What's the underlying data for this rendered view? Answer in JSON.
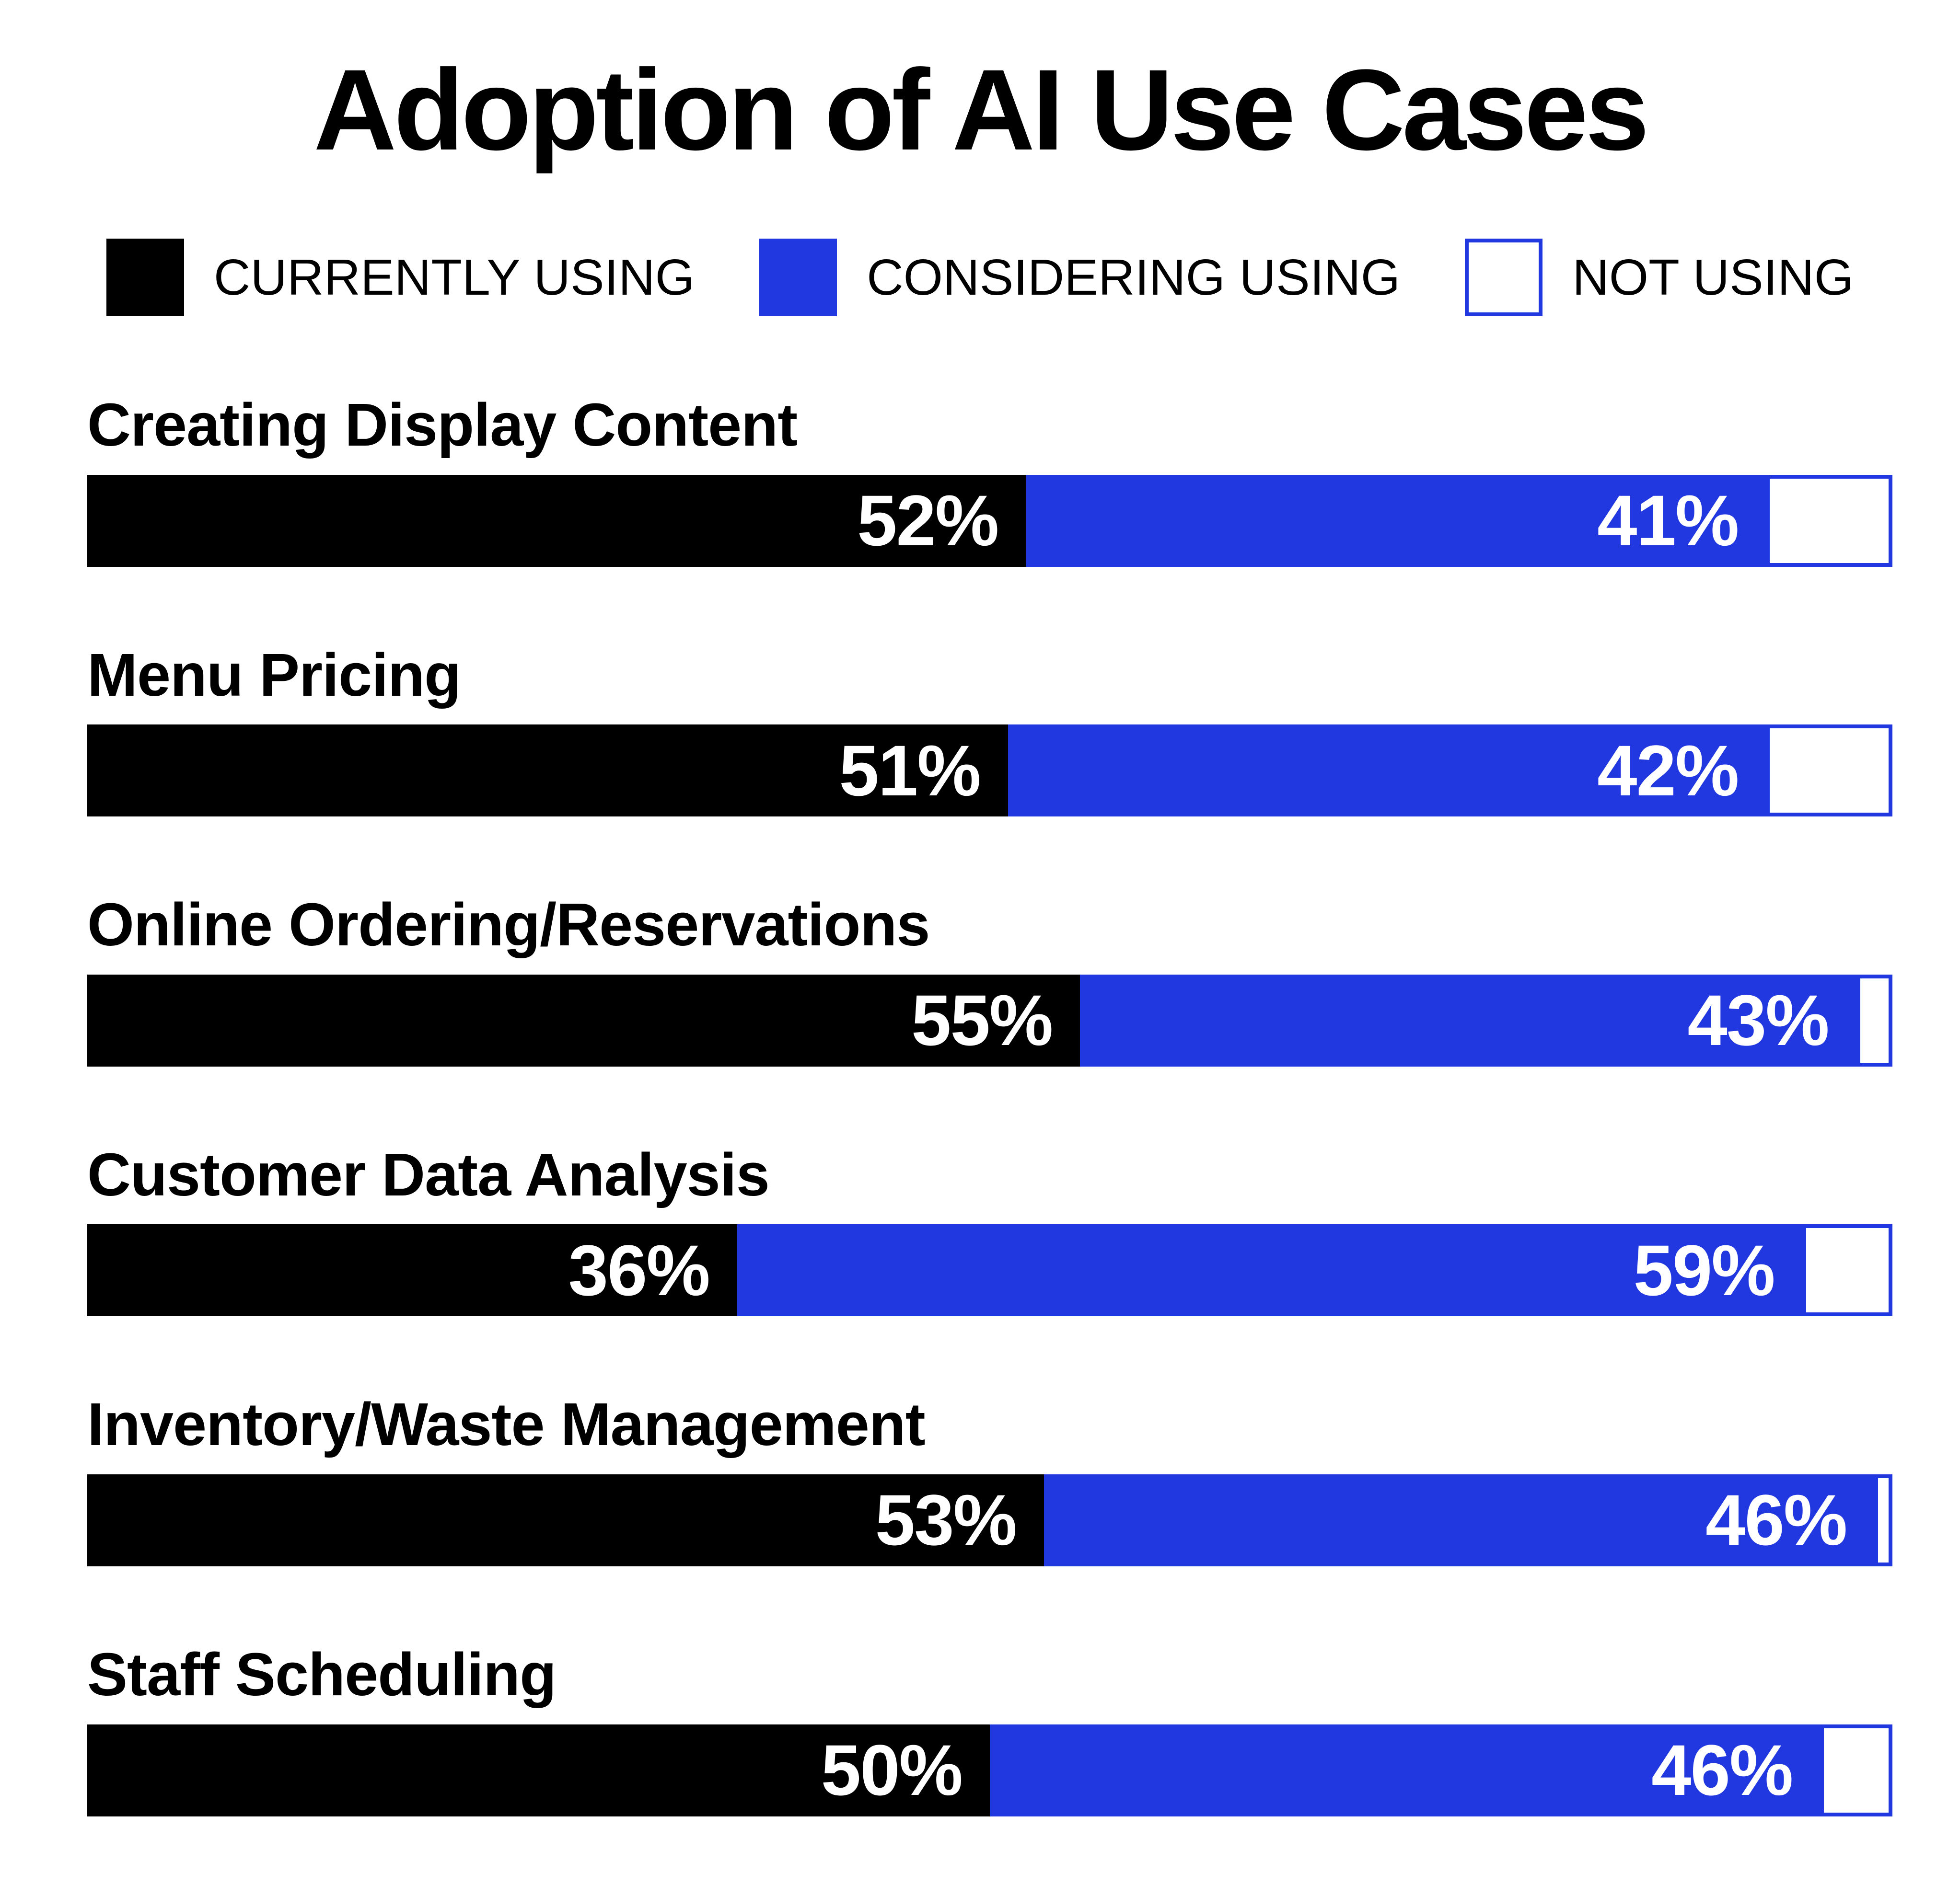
{
  "title": "Adoption of AI Use Cases",
  "colors": {
    "background": "#FFFFFF",
    "currently": "#000000",
    "considering": "#2137E0",
    "not_using_fill": "#FFFFFF",
    "not_using_border": "#2137E0",
    "label_text": "#000000",
    "value_text": "#FFFFFF"
  },
  "legend": {
    "items": [
      {
        "label": "CURRENTLY USING",
        "swatch_color": "#000000",
        "swatch_style": "solid"
      },
      {
        "label": "CONSIDERING USING",
        "swatch_color": "#2137E0",
        "swatch_style": "solid"
      },
      {
        "label": "NOT USING",
        "swatch_color": "#FFFFFF",
        "swatch_border_color": "#2137E0",
        "swatch_style": "outlined"
      }
    ]
  },
  "rows": [
    {
      "label": "Creating Display Content",
      "currently_pct": 52,
      "considering_pct": 41,
      "not_pct": 7,
      "currently_label": "52%",
      "considering_label": "41%"
    },
    {
      "label": "Menu Pricing",
      "currently_pct": 51,
      "considering_pct": 42,
      "not_pct": 7,
      "currently_label": "51%",
      "considering_label": "42%"
    },
    {
      "label": "Online Ordering/Reservations",
      "currently_pct": 55,
      "considering_pct": 43,
      "not_pct": 2,
      "currently_label": "55%",
      "considering_label": "43%"
    },
    {
      "label": "Customer Data Analysis",
      "currently_pct": 36,
      "considering_pct": 59,
      "not_pct": 5,
      "currently_label": "36%",
      "considering_label": "59%"
    },
    {
      "label": "Inventory/Waste Management",
      "currently_pct": 53,
      "considering_pct": 46,
      "not_pct": 1,
      "currently_label": "53%",
      "considering_label": "46%"
    },
    {
      "label": "Staff Scheduling",
      "currently_pct": 50,
      "considering_pct": 46,
      "not_pct": 4,
      "currently_label": "50%",
      "considering_label": "46%"
    }
  ],
  "chart_data": {
    "type": "bar",
    "orientation": "horizontal",
    "stacked": true,
    "title": "Adoption of AI Use Cases",
    "categories": [
      "Creating Display Content",
      "Menu Pricing",
      "Online Ordering/Reservations",
      "Customer Data Analysis",
      "Inventory/Waste Management",
      "Staff Scheduling"
    ],
    "series": [
      {
        "name": "CURRENTLY USING",
        "color": "#000000",
        "values": [
          52,
          51,
          55,
          36,
          53,
          50
        ]
      },
      {
        "name": "CONSIDERING USING",
        "color": "#2137E0",
        "values": [
          41,
          42,
          43,
          59,
          46,
          46
        ]
      },
      {
        "name": "NOT USING",
        "color": "#FFFFFF",
        "values": [
          7,
          7,
          2,
          5,
          1,
          4
        ],
        "note": "unlabeled remainder segment, white with blue outline"
      }
    ],
    "value_unit": "%",
    "xlim": [
      0,
      100
    ],
    "axes": "none",
    "grid": false,
    "legend_position": "top",
    "value_labels": "white bold percentages right-aligned inside black and blue segments only"
  }
}
